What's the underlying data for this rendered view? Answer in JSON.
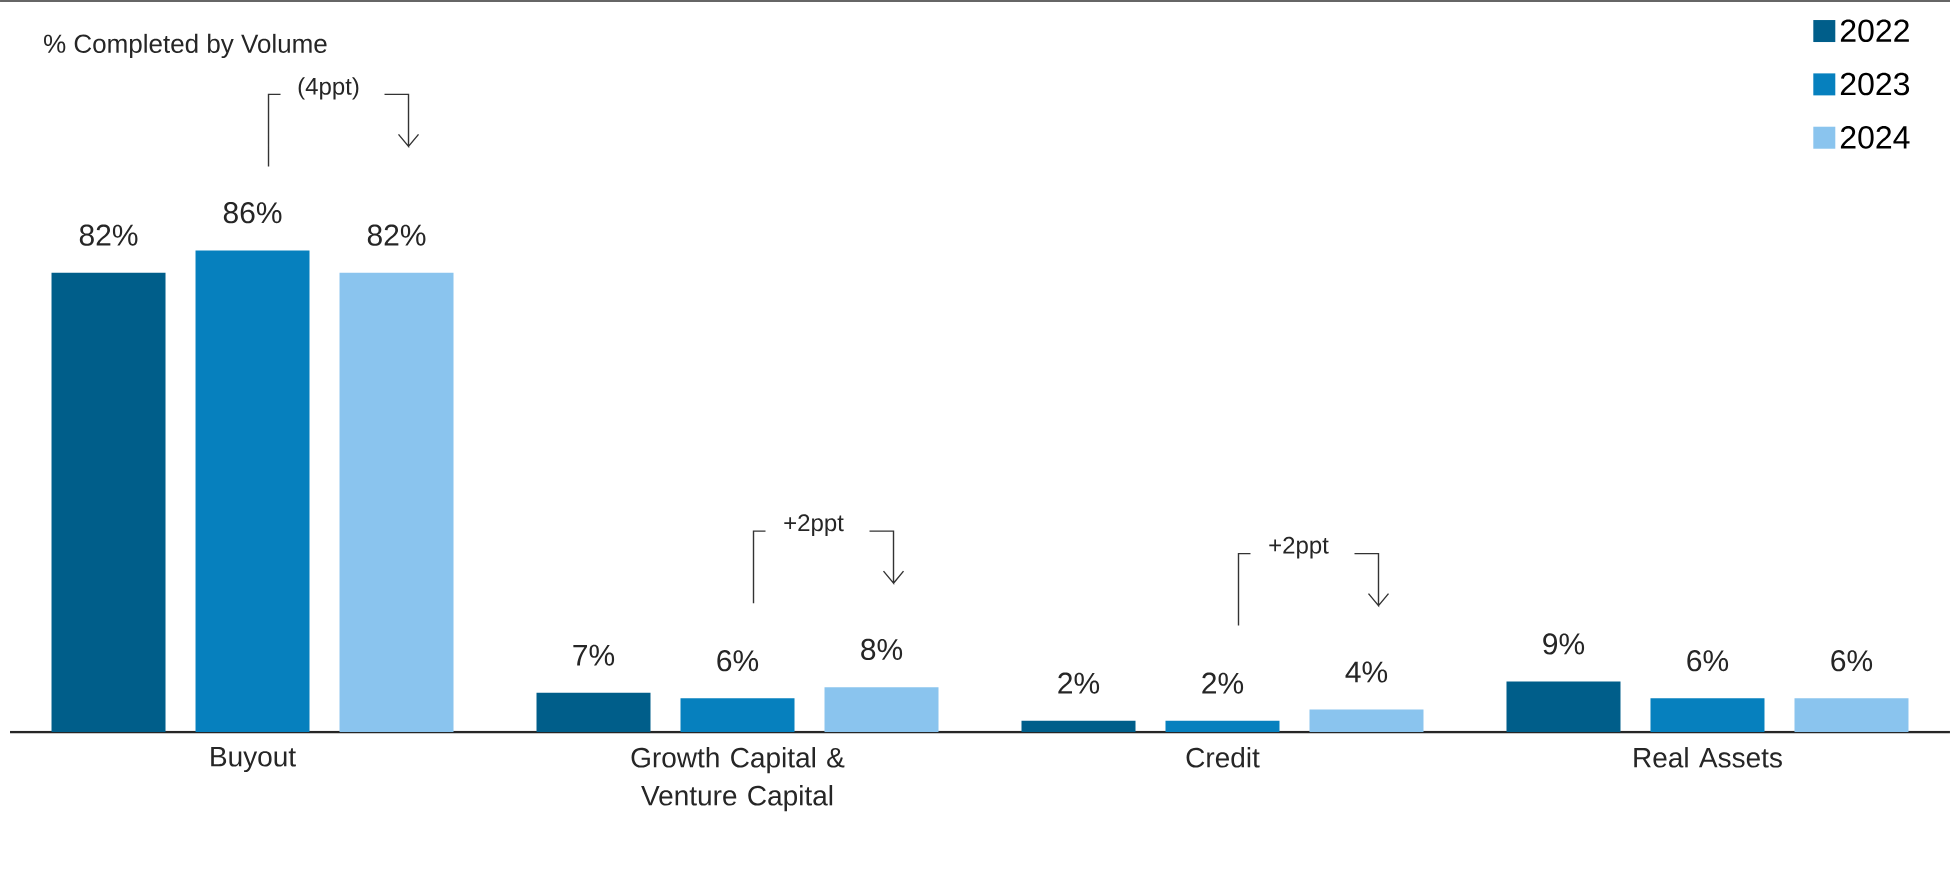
{
  "chart_data": {
    "type": "bar",
    "title": "% Completed by Volume",
    "categories": [
      "Buyout",
      "Growth Capital & Venture Capital",
      "Credit",
      "Real Assets"
    ],
    "series": [
      {
        "name": "2022",
        "color": "#005e8a",
        "values": [
          82,
          7,
          2,
          9
        ],
        "value_labels": [
          "82%",
          "7%",
          "2%",
          "9%"
        ]
      },
      {
        "name": "2023",
        "color": "#0680be",
        "values": [
          86,
          6,
          2,
          6
        ],
        "value_labels": [
          "86%",
          "6%",
          "2%",
          "6%"
        ]
      },
      {
        "name": "2024",
        "color": "#8ac4ee",
        "values": [
          82,
          8,
          4,
          6
        ],
        "value_labels": [
          "82%",
          "8%",
          "4%",
          "6%"
        ]
      }
    ],
    "annotations": [
      "(4ppt)",
      "+2ppt",
      "+2ppt"
    ],
    "legend": "top right"
  }
}
